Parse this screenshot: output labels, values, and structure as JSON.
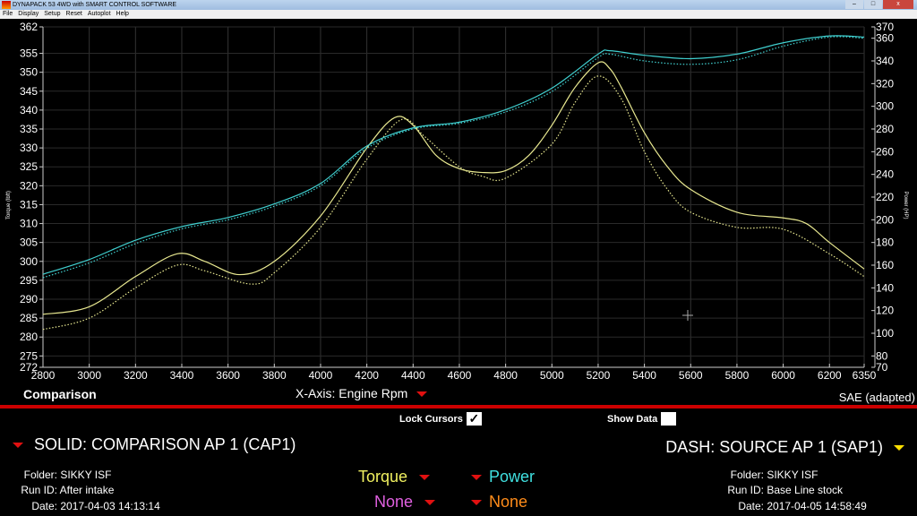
{
  "window": {
    "title": "DYNAPACK 53 4WD with SMART CONTROL SOFTWARE"
  },
  "menu": [
    "File",
    "Display",
    "Setup",
    "Reset",
    "Autoplot",
    "Help"
  ],
  "footer": {
    "comparison": "Comparison",
    "xaxis": "X-Axis: Engine Rpm",
    "sae": "SAE (adapted)",
    "lock_cursors": "Lock Cursors",
    "lock_checked": true,
    "show_data": "Show Data",
    "show_checked": false
  },
  "solid": {
    "title": "SOLID: COMPARISON AP 1 (CAP1)",
    "folder_label": "Folder:",
    "folder": "SIKKY ISF",
    "run_label": "Run ID:",
    "run": "After intake",
    "date_label": "Date:",
    "date": "2017-04-03 14:13:14"
  },
  "dash": {
    "title": "DASH: SOURCE AP 1 (SAP1)",
    "folder_label": "Folder:",
    "folder": "SIKKY ISF",
    "run_label": "Run ID:",
    "run": "Base Line stock",
    "date_label": "Date:",
    "date": "2017-04-05 14:58:49"
  },
  "channels": {
    "c1": "Torque",
    "c2": "Power",
    "c3": "None",
    "c4": "None",
    "colors": {
      "torque": "#f0f060",
      "power": "#40e0e0",
      "none1": "#e060e0",
      "none2": "#ff8c1a"
    }
  },
  "chart_data": {
    "type": "line",
    "xlabel": "",
    "ylabel_left": "Torque (lbft)",
    "ylabel_right": "Power (HP)",
    "xlim": [
      2800,
      6350
    ],
    "ylim_left": [
      272,
      362
    ],
    "ylim_right": [
      70,
      370
    ],
    "x_ticks": [
      2800,
      3000,
      3200,
      3400,
      3600,
      3800,
      4000,
      4200,
      4400,
      4600,
      4800,
      5000,
      5200,
      5400,
      5600,
      5800,
      6000,
      6200,
      6350
    ],
    "y_left_ticks": [
      272,
      275,
      280,
      285,
      290,
      295,
      300,
      305,
      310,
      315,
      320,
      325,
      330,
      335,
      340,
      345,
      350,
      355,
      362
    ],
    "y_right_ticks": [
      70,
      80,
      100,
      120,
      140,
      160,
      180,
      200,
      220,
      240,
      260,
      280,
      300,
      320,
      340,
      360,
      370
    ],
    "grid": true,
    "series": [
      {
        "name": "Torque",
        "style": "solid",
        "axis": "left",
        "color": "#e8e890",
        "points": [
          [
            2800,
            286
          ],
          [
            3000,
            288
          ],
          [
            3200,
            296
          ],
          [
            3380,
            302
          ],
          [
            3500,
            300
          ],
          [
            3650,
            296.5
          ],
          [
            3800,
            300
          ],
          [
            4000,
            312
          ],
          [
            4200,
            330
          ],
          [
            4320,
            338
          ],
          [
            4400,
            336
          ],
          [
            4500,
            328
          ],
          [
            4600,
            324.5
          ],
          [
            4700,
            323.5
          ],
          [
            4800,
            324
          ],
          [
            4900,
            328
          ],
          [
            5000,
            336
          ],
          [
            5100,
            346
          ],
          [
            5200,
            352.5
          ],
          [
            5250,
            351
          ],
          [
            5300,
            346
          ],
          [
            5400,
            334
          ],
          [
            5500,
            325
          ],
          [
            5600,
            319
          ],
          [
            5800,
            313
          ],
          [
            6000,
            311.5
          ],
          [
            6100,
            310
          ],
          [
            6200,
            305
          ],
          [
            6350,
            298
          ]
        ]
      },
      {
        "name": "Torque",
        "style": "dash",
        "axis": "left",
        "color": "#e8e890",
        "points": [
          [
            2800,
            282
          ],
          [
            3000,
            285
          ],
          [
            3200,
            293
          ],
          [
            3380,
            299
          ],
          [
            3500,
            297.5
          ],
          [
            3700,
            294
          ],
          [
            3800,
            297
          ],
          [
            4000,
            309
          ],
          [
            4200,
            327
          ],
          [
            4350,
            337.5
          ],
          [
            4450,
            333
          ],
          [
            4600,
            325
          ],
          [
            4700,
            322.5
          ],
          [
            4800,
            322
          ],
          [
            5000,
            331
          ],
          [
            5100,
            342
          ],
          [
            5200,
            349
          ],
          [
            5300,
            343
          ],
          [
            5400,
            329
          ],
          [
            5500,
            319
          ],
          [
            5600,
            313
          ],
          [
            5800,
            309
          ],
          [
            6000,
            308.5
          ],
          [
            6200,
            302
          ],
          [
            6350,
            296
          ]
        ]
      },
      {
        "name": "Power",
        "style": "solid",
        "axis": "right",
        "color": "#40d0d0",
        "points": [
          [
            2800,
            152
          ],
          [
            3000,
            165
          ],
          [
            3200,
            182
          ],
          [
            3400,
            194
          ],
          [
            3600,
            202
          ],
          [
            3800,
            214
          ],
          [
            4000,
            232
          ],
          [
            4200,
            265
          ],
          [
            4400,
            281
          ],
          [
            4600,
            286
          ],
          [
            4800,
            297
          ],
          [
            5000,
            316
          ],
          [
            5200,
            346
          ],
          [
            5250,
            349
          ],
          [
            5400,
            345
          ],
          [
            5600,
            342
          ],
          [
            5800,
            346
          ],
          [
            6000,
            356
          ],
          [
            6200,
            362
          ],
          [
            6350,
            361
          ]
        ]
      },
      {
        "name": "Power",
        "style": "dash",
        "axis": "right",
        "color": "#40d0d0",
        "points": [
          [
            2800,
            149
          ],
          [
            3000,
            162
          ],
          [
            3200,
            179
          ],
          [
            3400,
            192
          ],
          [
            3600,
            200
          ],
          [
            3800,
            212
          ],
          [
            4000,
            230
          ],
          [
            4200,
            263
          ],
          [
            4400,
            280
          ],
          [
            4600,
            285
          ],
          [
            4800,
            295
          ],
          [
            5000,
            313
          ],
          [
            5200,
            343
          ],
          [
            5250,
            346
          ],
          [
            5400,
            340
          ],
          [
            5600,
            337
          ],
          [
            5800,
            341
          ],
          [
            6000,
            353
          ],
          [
            6200,
            361
          ],
          [
            6350,
            360
          ]
        ]
      }
    ]
  }
}
